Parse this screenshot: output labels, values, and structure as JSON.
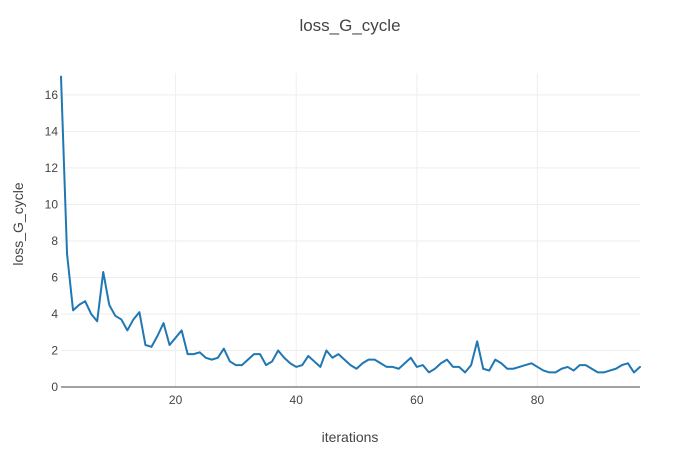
{
  "chart_data": {
    "type": "line",
    "title": "loss_G_cycle",
    "xlabel": "iterations",
    "ylabel": "loss_G_cycle",
    "xlim": [
      1,
      97
    ],
    "ylim": [
      0,
      17.2
    ],
    "x_ticks": [
      20,
      40,
      60,
      80
    ],
    "y_ticks": [
      0,
      2,
      4,
      6,
      8,
      10,
      12,
      14,
      16
    ],
    "grid": true,
    "legend": "none",
    "series": [
      {
        "color": "#1f77b4",
        "x": [
          1,
          2,
          3,
          4,
          5,
          6,
          7,
          8,
          9,
          10,
          11,
          12,
          13,
          14,
          15,
          16,
          17,
          18,
          19,
          20,
          21,
          22,
          23,
          24,
          25,
          26,
          27,
          28,
          29,
          30,
          31,
          32,
          33,
          34,
          35,
          36,
          37,
          38,
          39,
          40,
          41,
          42,
          43,
          44,
          45,
          46,
          47,
          48,
          49,
          50,
          51,
          52,
          53,
          54,
          55,
          56,
          57,
          58,
          59,
          60,
          61,
          62,
          63,
          64,
          65,
          66,
          67,
          68,
          69,
          70,
          71,
          72,
          73,
          74,
          75,
          76,
          77,
          78,
          79,
          80,
          81,
          82,
          83,
          84,
          85,
          86,
          87,
          88,
          89,
          90,
          91,
          92,
          93,
          94,
          95,
          96,
          97
        ],
        "y": [
          17.0,
          7.3,
          4.2,
          4.5,
          4.7,
          4.0,
          3.6,
          6.3,
          4.5,
          3.9,
          3.7,
          3.1,
          3.7,
          4.1,
          2.3,
          2.2,
          2.8,
          3.5,
          2.3,
          2.7,
          3.1,
          1.8,
          1.8,
          1.9,
          1.6,
          1.5,
          1.6,
          2.1,
          1.4,
          1.2,
          1.2,
          1.5,
          1.8,
          1.8,
          1.2,
          1.4,
          2.0,
          1.6,
          1.3,
          1.1,
          1.2,
          1.7,
          1.4,
          1.1,
          2.0,
          1.6,
          1.8,
          1.5,
          1.2,
          1.0,
          1.3,
          1.5,
          1.5,
          1.3,
          1.1,
          1.1,
          1.0,
          1.3,
          1.6,
          1.1,
          1.2,
          0.8,
          1.0,
          1.3,
          1.5,
          1.1,
          1.1,
          0.8,
          1.2,
          2.5,
          1.0,
          0.9,
          1.5,
          1.3,
          1.0,
          1.0,
          1.1,
          1.2,
          1.3,
          1.1,
          0.9,
          0.8,
          0.8,
          1.0,
          1.1,
          0.9,
          1.2,
          1.2,
          1.0,
          0.8,
          0.8,
          0.9,
          1.0,
          1.2,
          1.3,
          0.8,
          1.1
        ]
      }
    ]
  }
}
